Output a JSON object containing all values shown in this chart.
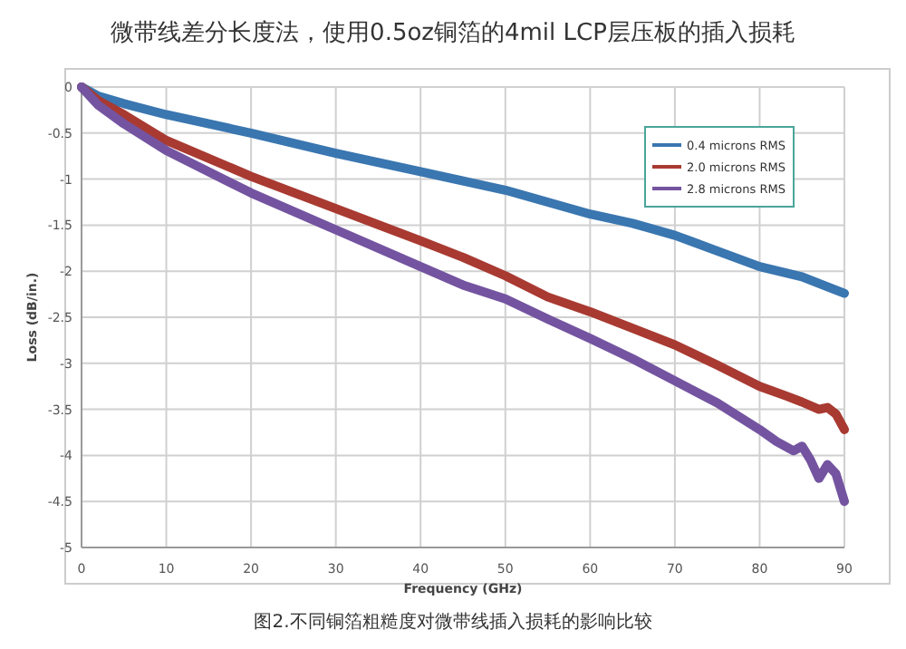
{
  "chart_data": {
    "type": "line",
    "title": "微带线差分长度法，使用0.5oz铜箔的4mil LCP层压板的插入损耗",
    "xlabel": "Frequency (GHz)",
    "ylabel": "Loss (dB/in.)",
    "annotations": [
      "图2.不同铜箔粗糙度对微带线插入损耗的影响比较"
    ],
    "xlim": [
      0,
      90
    ],
    "xticks": [
      0,
      10,
      20,
      30,
      40,
      50,
      60,
      70,
      80,
      90
    ],
    "ylim": [
      -5,
      0
    ],
    "yticks": [
      {
        "value": -5,
        "label": "-5"
      },
      {
        "value": -4.5,
        "label": "-4.5"
      },
      {
        "value": -4,
        "label": "-4"
      },
      {
        "value": -3.5,
        "label": "-3.5"
      },
      {
        "value": -3,
        "label": "-3"
      },
      {
        "value": -2.5,
        "label": "-2.5"
      },
      {
        "value": -2,
        "label": "-2"
      },
      {
        "value": -1.5,
        "label": "-1.5"
      },
      {
        "value": -1,
        "label": "-1"
      },
      {
        "value": -0.5,
        "label": "-0.5"
      },
      0
    ],
    "grid": true,
    "legend": "top right",
    "series": [
      {
        "name": "0.4 microns RMS",
        "color": "#3a76b0",
        "x": [
          0,
          2,
          5,
          10,
          20,
          30,
          40,
          45,
          50,
          55,
          60,
          65,
          70,
          75,
          80,
          85,
          88,
          90
        ],
        "values": [
          0,
          -0.1,
          -0.18,
          -0.3,
          -0.5,
          -0.72,
          -0.92,
          -1.02,
          -1.12,
          -1.25,
          -1.38,
          -1.48,
          -1.61,
          -1.78,
          -1.95,
          -2.06,
          -2.17,
          -2.24
        ]
      },
      {
        "name": "2.0 microns RMS",
        "color": "#a83a32",
        "x": [
          0,
          2,
          5,
          10,
          20,
          30,
          40,
          45,
          50,
          55,
          60,
          65,
          70,
          75,
          80,
          83,
          85,
          87,
          88,
          89,
          90
        ],
        "values": [
          0,
          -0.15,
          -0.3,
          -0.58,
          -0.97,
          -1.32,
          -1.67,
          -1.85,
          -2.05,
          -2.28,
          -2.44,
          -2.62,
          -2.8,
          -3.02,
          -3.25,
          -3.35,
          -3.42,
          -3.5,
          -3.48,
          -3.55,
          -3.72
        ]
      },
      {
        "name": "2.8 microns RMS",
        "color": "#7454a0",
        "x": [
          0,
          2,
          5,
          10,
          20,
          30,
          40,
          45,
          50,
          55,
          60,
          65,
          70,
          75,
          80,
          82,
          84,
          85,
          86,
          87,
          88,
          89,
          90
        ],
        "values": [
          0,
          -0.2,
          -0.4,
          -0.69,
          -1.15,
          -1.55,
          -1.95,
          -2.15,
          -2.3,
          -2.52,
          -2.73,
          -2.95,
          -3.19,
          -3.43,
          -3.72,
          -3.85,
          -3.95,
          -3.9,
          -4.05,
          -4.25,
          -4.1,
          -4.2,
          -4.5
        ]
      }
    ]
  }
}
